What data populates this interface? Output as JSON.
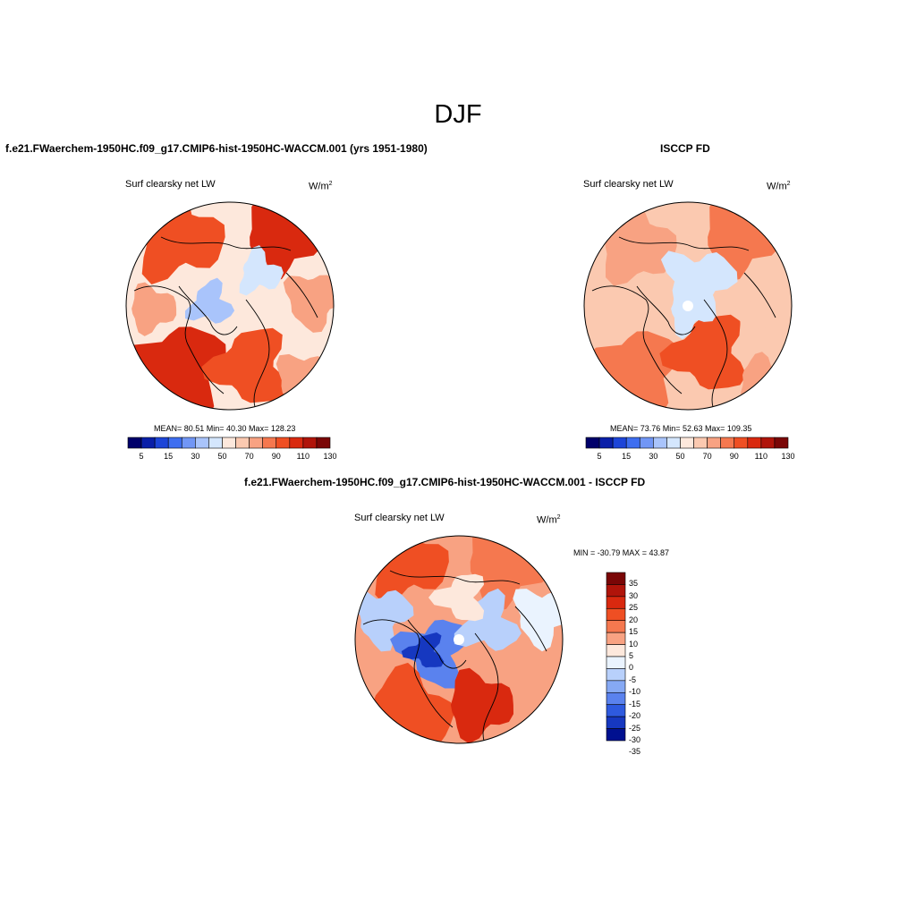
{
  "figure": {
    "title": "DJF",
    "panels": [
      {
        "title": "f.e21.FWaerchem-1950HC.f09_g17.CMIP6-hist-1950HC-WACCM.001 (yrs 1951-1980)",
        "variable": "Surf clearsky net LW",
        "units_base": "W/m",
        "units_exp": "2",
        "stats": "MEAN=  80.51  Min=  40.30  Max= 128.23",
        "colorbar_labels": [
          "5",
          "15",
          "30",
          "50",
          "70",
          "90",
          "110",
          "130"
        ]
      },
      {
        "title": "ISCCP FD",
        "variable": "Surf clearsky net LW",
        "units_base": "W/m",
        "units_exp": "2",
        "stats": "MEAN=  73.76  Min=  52.63  Max= 109.35",
        "colorbar_labels": [
          "5",
          "15",
          "30",
          "50",
          "70",
          "90",
          "110",
          "130"
        ]
      },
      {
        "title": "f.e21.FWaerchem-1950HC.f09_g17.CMIP6-hist-1950HC-WACCM.001 - ISCCP FD",
        "variable": "Surf clearsky net LW",
        "units_base": "W/m",
        "units_exp": "2",
        "stats": "MIN = -30.79 MAX =  43.87",
        "colorbar_labels": [
          "35",
          "30",
          "25",
          "20",
          "15",
          "10",
          "5",
          "0",
          "-5",
          "-10",
          "-15",
          "-20",
          "-25",
          "-30",
          "-35"
        ]
      }
    ]
  },
  "colors": {
    "abs_scale": [
      "#00006a",
      "#0a1fa8",
      "#1d45d8",
      "#3e6ef0",
      "#7196f5",
      "#a9c4fb",
      "#d4e6fd",
      "#fde8dc",
      "#fbc9b0",
      "#f8a282",
      "#f5784f",
      "#ef4f23",
      "#d9290f",
      "#b0140a",
      "#7a0606"
    ],
    "diff_scale": [
      "#7a0606",
      "#b0140a",
      "#d9290f",
      "#ef4f23",
      "#f5784f",
      "#f8a282",
      "#fde8dc",
      "#eaf3fe",
      "#b8d0fb",
      "#86a9f4",
      "#5a82ee",
      "#2e5adf",
      "#1638c0",
      "#001090"
    ]
  }
}
